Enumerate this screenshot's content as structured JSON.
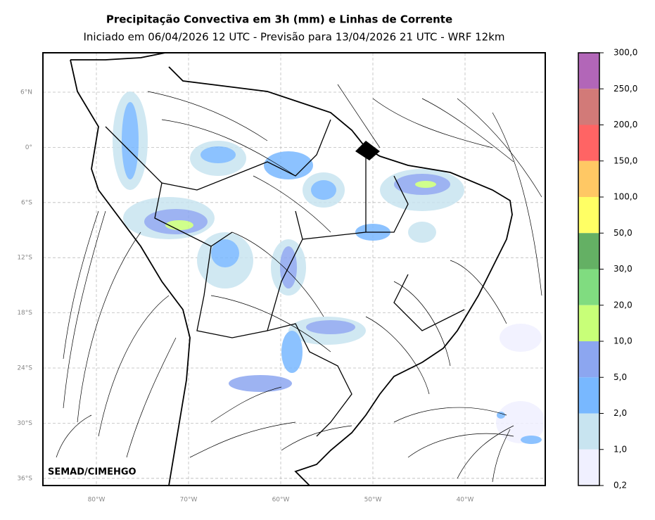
{
  "title": "Precipitação Convectiva em 3h (mm) e Linhas de Corrente",
  "subtitle": "Iniciado em 06/04/2026 12 UTC - Previsão para 13/04/2026 21 UTC - WRF 12km",
  "credit": "SEMAD/CIMEHGO",
  "lat_labels": [
    "6°N",
    "0°",
    "6°S",
    "12°S",
    "18°S",
    "24°S",
    "30°S",
    "36°S"
  ],
  "lon_labels": [
    "80°W",
    "70°W",
    "60°W",
    "50°W",
    "40°W"
  ],
  "colorbar": {
    "labels": [
      "300,0",
      "250,0",
      "200,0",
      "150,0",
      "100,0",
      "50,0",
      "30,0",
      "20,0",
      "10,0",
      "5,0",
      "2,0",
      "1,0",
      "0,2"
    ],
    "colors": [
      "#b266b8",
      "#d27a78",
      "#ff6464",
      "#ffc864",
      "#ffff64",
      "#64b064",
      "#80dc80",
      "#c8ff78",
      "#8ca6f0",
      "#78b8ff",
      "#c8e4f0",
      "#f0f0ff"
    ]
  }
}
